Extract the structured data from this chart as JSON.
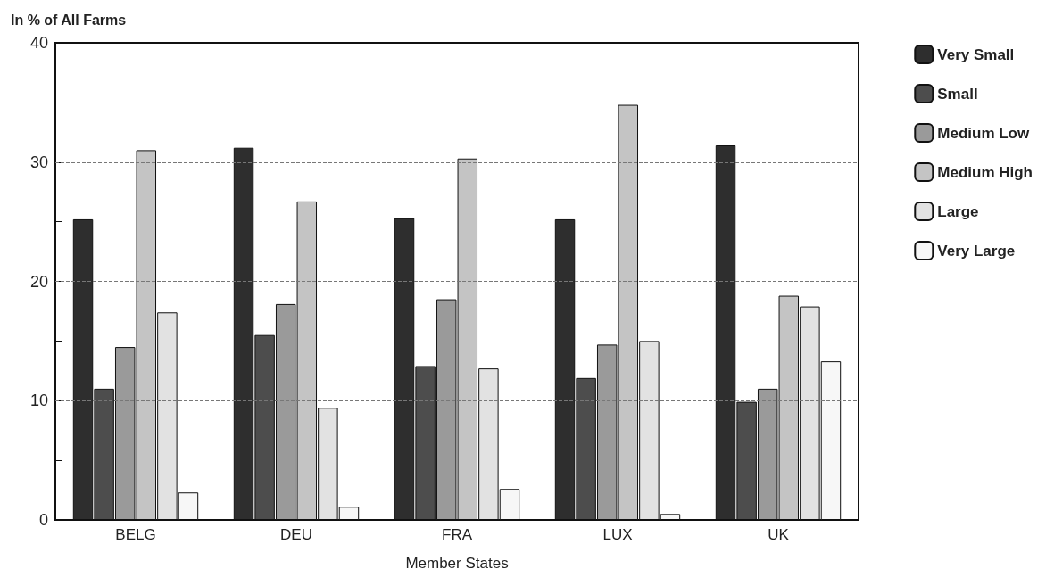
{
  "chart_data": {
    "type": "bar",
    "ylabel": "In % of All Farms",
    "xlabel": "Member States",
    "categories": [
      "BELG",
      "DEU",
      "FRA",
      "LUX",
      "UK"
    ],
    "series": [
      {
        "name": "Very Small",
        "color": "#2e2e2e",
        "values": [
          25.2,
          31.2,
          25.3,
          25.2,
          31.4
        ]
      },
      {
        "name": "Small",
        "color": "#4d4d4d",
        "values": [
          11.0,
          15.5,
          12.9,
          11.9,
          9.9
        ]
      },
      {
        "name": "Medium Low",
        "color": "#9a9a9a",
        "values": [
          14.5,
          18.1,
          18.5,
          14.7,
          11.0
        ]
      },
      {
        "name": "Medium High",
        "color": "#c4c4c4",
        "values": [
          31.0,
          26.7,
          30.3,
          34.8,
          18.8
        ]
      },
      {
        "name": "Large",
        "color": "#e2e2e2",
        "values": [
          17.4,
          9.4,
          12.7,
          15.0,
          17.9
        ]
      },
      {
        "name": "Very Large",
        "color": "#f7f7f7",
        "values": [
          2.3,
          1.1,
          2.6,
          0.5,
          13.3
        ]
      }
    ],
    "ylim": [
      0,
      40
    ],
    "yticks": [
      0,
      {
        "value": 5,
        "label": null
      },
      10,
      {
        "value": 15,
        "label": null
      },
      20,
      {
        "value": 25,
        "label": null
      },
      30,
      {
        "value": 35,
        "label": null
      },
      40
    ],
    "grid": "y",
    "legend": "right"
  }
}
